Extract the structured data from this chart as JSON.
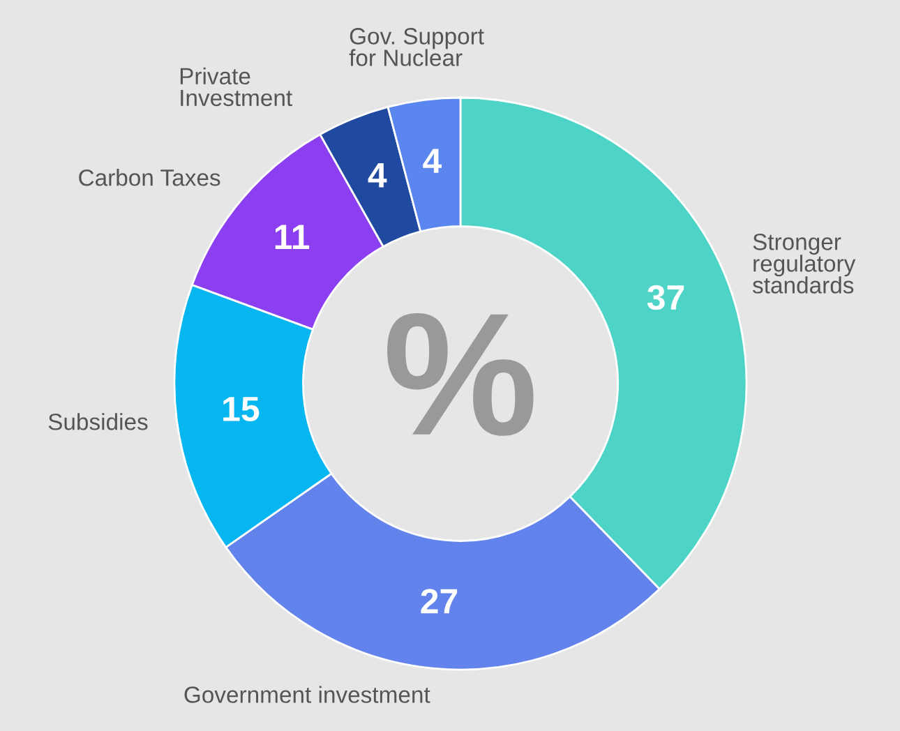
{
  "chart_data": {
    "type": "donut",
    "categories": [
      "Stronger\nregulatory\nstandards",
      "Government investment",
      "Subsidies",
      "Carbon Taxes",
      "Private\nInvestment",
      "Gov. Support\nfor Nuclear"
    ],
    "values": [
      37,
      27,
      15,
      11,
      4,
      4
    ],
    "colors": [
      "#4dd4c6",
      "#6383ec",
      "#06b6f0",
      "#8b3ff0",
      "#1f4aa0",
      "#5b86f0"
    ],
    "data_labels": true,
    "annotations": [
      "%"
    ]
  }
}
